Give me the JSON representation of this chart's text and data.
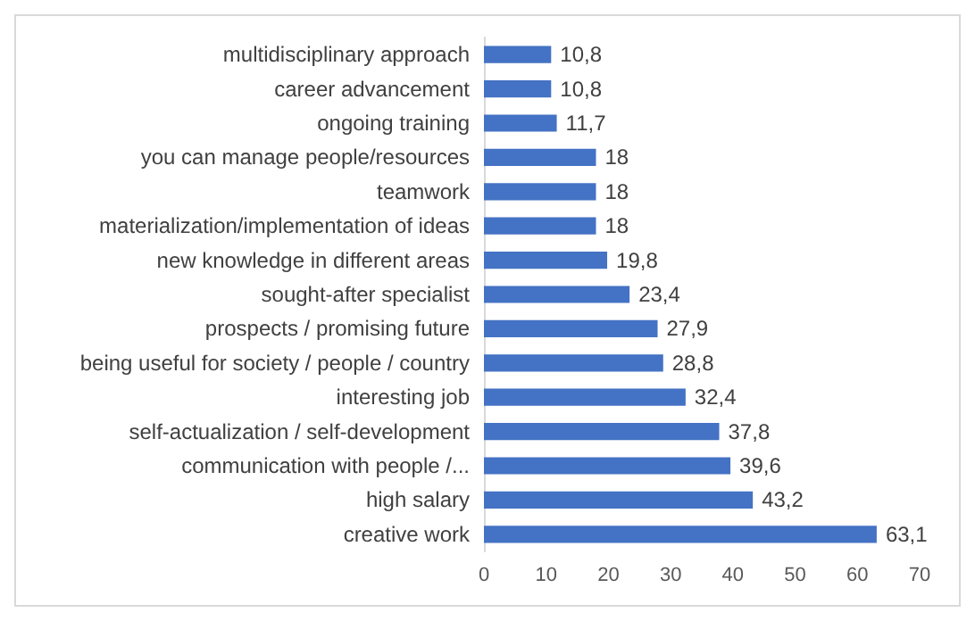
{
  "chart_data": {
    "type": "bar",
    "orientation": "horizontal",
    "categories": [
      "multidisciplinary approach",
      "career advancement",
      "ongoing training",
      "you can manage people/resources",
      "teamwork",
      "materialization/implementation of ideas",
      "new knowledge in different areas",
      "sought-after specialist",
      "prospects / promising future",
      "being useful for society / people / country",
      "interesting job",
      "self-actualization / self-development",
      "communication with people /...",
      "high salary",
      "creative work"
    ],
    "values": [
      10.8,
      10.8,
      11.7,
      18,
      18,
      18,
      19.8,
      23.4,
      27.9,
      28.8,
      32.4,
      37.8,
      39.6,
      43.2,
      63.1
    ],
    "value_labels": [
      "10,8",
      "10,8",
      "11,7",
      "18",
      "18",
      "18",
      "19,8",
      "23,4",
      "27,9",
      "28,8",
      "32,4",
      "37,8",
      "39,6",
      "43,2",
      "63,1"
    ],
    "color": "#4472c4",
    "xlim": [
      0,
      70
    ],
    "xticks": [
      0,
      10,
      20,
      30,
      40,
      50,
      60,
      70
    ]
  }
}
